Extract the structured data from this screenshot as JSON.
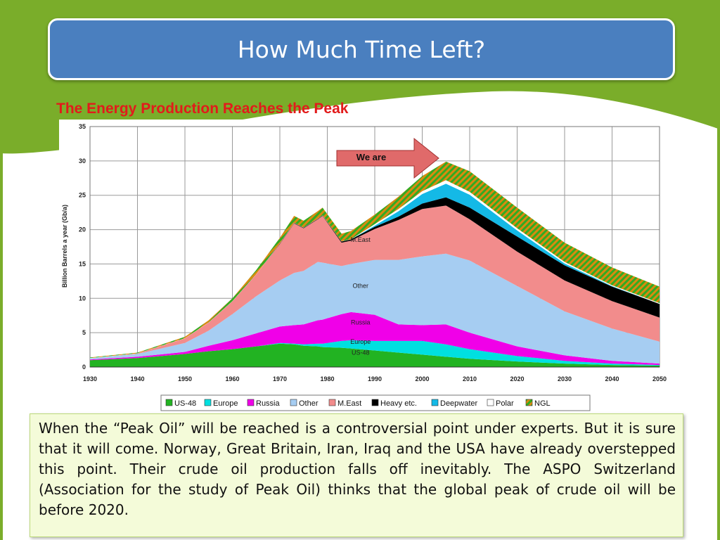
{
  "slide": {
    "title": "How Much Time Left?",
    "subtitle": "The Energy Production Reaches the Peak",
    "body_text": "When the “Peak Oil” will be reached is a controversial point under experts. But it is sure that it will come. Norway, Great Britain, Iran, Iraq and the USA have already overstepped this point. Their crude oil production falls off inevitably. The ASPO Switzerland (Association for the study of Peak Oil) thinks that the global peak of crude oil will be before 2020."
  },
  "colors": {
    "green": "#7aad2a",
    "title_blue": "#4a7fbf",
    "subtitle_red": "#e21b1b"
  },
  "chart_data": {
    "type": "area",
    "title": "",
    "ylabel": "Billion Barrels a year (Gb/a)",
    "xlabel": "",
    "xlim": [
      1930,
      2050
    ],
    "ylim": [
      0,
      35
    ],
    "x_ticks": [
      "1930",
      "1940",
      "1950",
      "1960",
      "1970",
      "1980",
      "1990",
      "2000",
      "2010",
      "2020",
      "2030",
      "2040",
      "2050"
    ],
    "y_ticks": [
      "0",
      "5",
      "10",
      "15",
      "20",
      "25",
      "30",
      "35"
    ],
    "grid": true,
    "legend_position": "bottom",
    "annotation": "We are",
    "x": [
      1930,
      1940,
      1950,
      1955,
      1960,
      1965,
      1970,
      1973,
      1975,
      1978,
      1979,
      1983,
      1985,
      1990,
      1995,
      2000,
      2005,
      2010,
      2020,
      2030,
      2040,
      2050
    ],
    "series": [
      {
        "name": "US-48",
        "label": "US-48",
        "color": "#22b322",
        "values": [
          1.0,
          1.3,
          1.9,
          2.3,
          2.6,
          3.0,
          3.4,
          3.3,
          3.1,
          3.0,
          2.9,
          2.8,
          2.7,
          2.4,
          2.1,
          1.8,
          1.5,
          1.2,
          0.8,
          0.5,
          0.3,
          0.2
        ]
      },
      {
        "name": "Europe",
        "label": "Europe",
        "color": "#00e0e0",
        "values": [
          0.0,
          0.0,
          0.0,
          0.0,
          0.0,
          0.0,
          0.1,
          0.1,
          0.2,
          0.4,
          0.5,
          1.0,
          1.2,
          1.4,
          1.7,
          2.0,
          1.8,
          1.4,
          0.8,
          0.4,
          0.2,
          0.1
        ]
      },
      {
        "name": "Russia",
        "label": "Russia",
        "color": "#f000e8",
        "values": [
          0.1,
          0.2,
          0.3,
          0.8,
          1.3,
          1.9,
          2.4,
          2.7,
          2.9,
          3.4,
          3.5,
          3.9,
          4.1,
          3.8,
          2.4,
          2.3,
          2.9,
          2.4,
          1.4,
          0.8,
          0.4,
          0.2
        ]
      },
      {
        "name": "Other",
        "label": "Other",
        "color": "#a6cdf2",
        "values": [
          0.2,
          0.4,
          1.3,
          2.2,
          3.8,
          5.4,
          6.7,
          7.6,
          7.8,
          8.5,
          8.3,
          7.0,
          7.0,
          8.0,
          9.4,
          10.0,
          10.3,
          10.5,
          8.8,
          6.4,
          4.7,
          3.2
        ]
      },
      {
        "name": "M.East",
        "label": "M.East",
        "color": "#f28c8c",
        "values": [
          0.0,
          0.1,
          0.7,
          1.2,
          1.9,
          3.2,
          5.3,
          7.2,
          6.2,
          6.2,
          6.8,
          3.4,
          3.4,
          4.5,
          5.8,
          6.9,
          7.0,
          6.0,
          5.0,
          4.5,
          4.0,
          3.5
        ]
      },
      {
        "name": "Heavy etc.",
        "label": "Heavy etc.",
        "color": "#000000",
        "values": [
          0.0,
          0.0,
          0.0,
          0.0,
          0.0,
          0.0,
          0.1,
          0.1,
          0.1,
          0.1,
          0.1,
          0.2,
          0.2,
          0.3,
          0.5,
          0.8,
          1.2,
          1.7,
          2.2,
          2.2,
          2.1,
          2.0
        ]
      },
      {
        "name": "Deepwater",
        "label": "Deepwater",
        "color": "#14b9e6",
        "values": [
          0.0,
          0.0,
          0.0,
          0.0,
          0.0,
          0.0,
          0.0,
          0.0,
          0.0,
          0.0,
          0.0,
          0.0,
          0.0,
          0.2,
          0.8,
          1.4,
          2.0,
          1.9,
          0.9,
          0.3,
          0.1,
          0.0
        ]
      },
      {
        "name": "Polar",
        "label": "Polar",
        "color": "#ffffff",
        "values": [
          0.0,
          0.0,
          0.0,
          0.0,
          0.0,
          0.0,
          0.0,
          0.0,
          0.0,
          0.0,
          0.0,
          0.0,
          0.0,
          0.2,
          0.3,
          0.4,
          0.5,
          0.4,
          0.3,
          0.2,
          0.1,
          0.1
        ]
      },
      {
        "name": "NGL",
        "label": "NGL",
        "color": "#d98a10",
        "stripe": "#33aa22",
        "values": [
          0.1,
          0.1,
          0.2,
          0.3,
          0.4,
          0.6,
          0.8,
          1.0,
          1.0,
          1.1,
          1.1,
          1.1,
          1.2,
          1.4,
          1.8,
          2.2,
          2.7,
          3.0,
          3.0,
          2.8,
          2.6,
          2.4
        ]
      }
    ]
  }
}
